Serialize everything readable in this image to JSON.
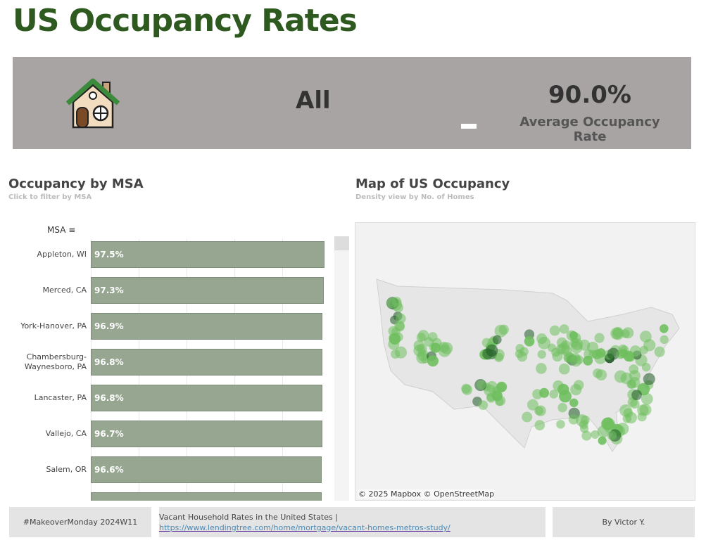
{
  "title": "US Occupancy Rates",
  "banner": {
    "selection": "All",
    "avg_value": "90.0%",
    "avg_label": "Average Occupancy Rate",
    "icon": "house-icon"
  },
  "left": {
    "title": "Occupancy by MSA",
    "subtitle": "Click to filter by MSA",
    "column_header": "MSA"
  },
  "right": {
    "title": "Map of US Occupancy",
    "subtitle": "Density view by No. of Homes",
    "attribution": "© 2025 Mapbox  © OpenStreetMap"
  },
  "chart_data": {
    "type": "bar",
    "orientation": "horizontal",
    "xlim": [
      0,
      100
    ],
    "categories": [
      "Appleton, WI",
      "Merced, CA",
      "York-Hanover, PA",
      "Chambersburg-Waynesboro, PA",
      "Lancaster, PA",
      "Vallejo, CA",
      "Salem, OR"
    ],
    "values": [
      97.5,
      97.3,
      96.9,
      96.8,
      96.8,
      96.7,
      96.6
    ],
    "labels": [
      "97.5%",
      "97.3%",
      "96.9%",
      "96.8%",
      "96.8%",
      "96.7%",
      "96.6%"
    ]
  },
  "footer": {
    "left": "#MakeoverMonday 2024W11",
    "source_text": "Vacant Household Rates in the United States | ",
    "source_link": "https://www.lendingtree.com/home/mortgage/vacant-homes-metros-study/",
    "right": "By Victor Y."
  }
}
